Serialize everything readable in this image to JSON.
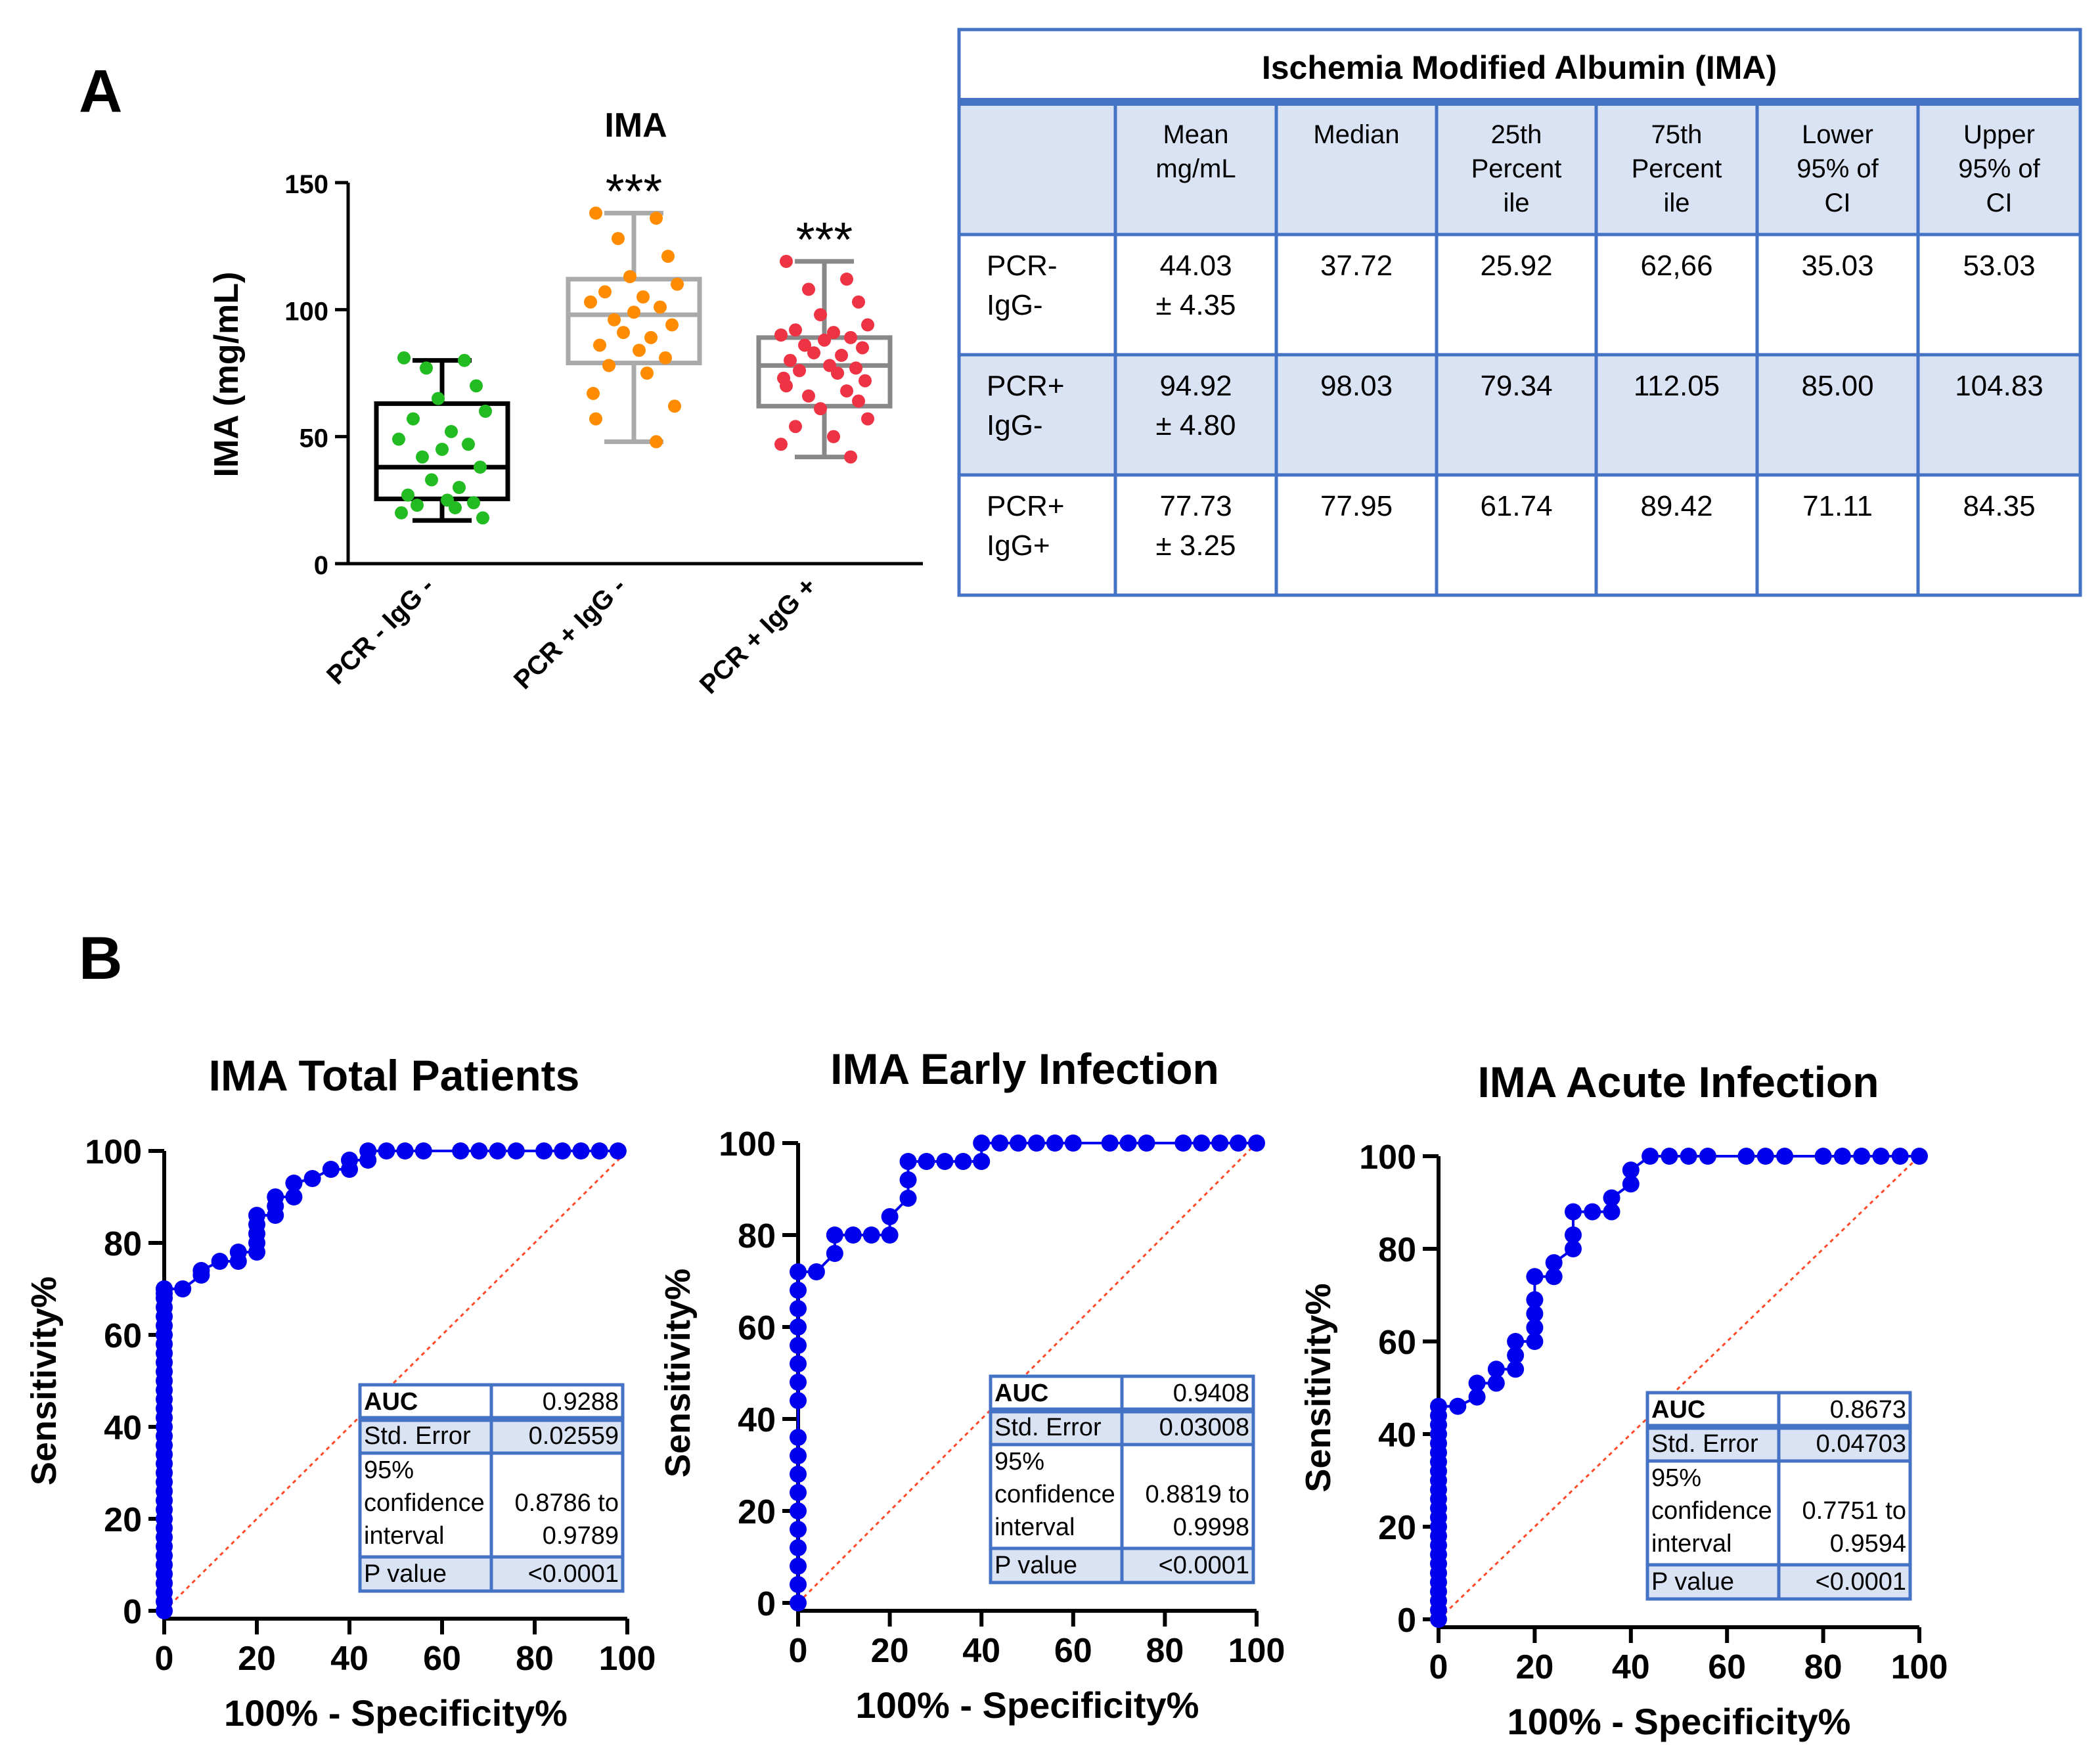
{
  "panel_a_label": "A",
  "panel_b_label": "B",
  "boxplot": {
    "title": "IMA",
    "ylabel": "IMA (mg/mL)",
    "yticks": [
      "0",
      "50",
      "100",
      "150"
    ],
    "significance": "***"
  },
  "ima_table": {
    "title": "Ischemia Modified Albumin (IMA)",
    "headers": [
      [
        "Mean",
        "mg/mL"
      ],
      [
        "Median"
      ],
      [
        "25th",
        "Percent",
        "ile"
      ],
      [
        "75th",
        "Percent",
        "ile"
      ],
      [
        "Lower",
        "95% of",
        "CI"
      ],
      [
        "Upper",
        "95% of",
        "CI"
      ]
    ],
    "rows": [
      {
        "label": [
          "PCR-",
          "IgG-"
        ],
        "mean": [
          "44.03",
          "± 4.35"
        ],
        "median": "37.72",
        "p25": "25.92",
        "p75": "62,66",
        "lower": "35.03",
        "upper": "53.03"
      },
      {
        "label": [
          "PCR+",
          "IgG-"
        ],
        "mean": [
          "94.92",
          "± 4.80"
        ],
        "median": "98.03",
        "p25": "79.34",
        "p75": "112.05",
        "lower": "85.00",
        "upper": "104.83"
      },
      {
        "label": [
          "PCR+",
          "IgG+"
        ],
        "mean": [
          "77.73",
          "± 3.25"
        ],
        "median": "77.95",
        "p25": "61.74",
        "p75": "89.42",
        "lower": "71.11",
        "upper": "84.35"
      }
    ]
  },
  "roc_common": {
    "xlabel": "100% - Specificity%",
    "ylabel": "Sensitivity%",
    "ticks": [
      "0",
      "20",
      "40",
      "60",
      "80",
      "100"
    ],
    "stat_labels": {
      "auc": "AUC",
      "se": "Std. Error",
      "ci": [
        "95%",
        "confidence",
        "interval"
      ],
      "p": "P value"
    }
  },
  "chart_data": [
    {
      "type": "box",
      "title": "IMA",
      "ylabel": "IMA (mg/mL)",
      "ylim": [
        0,
        150
      ],
      "categories": [
        "PCR - IgG -",
        "PCR + IgG -",
        "PCR + IgG +"
      ],
      "colors": [
        "#22bb22",
        "#ff8c00",
        "#ee3344"
      ],
      "significance": [
        "",
        "***",
        "***"
      ],
      "boxes": [
        {
          "min": 17,
          "q1": 25.5,
          "median": 38,
          "q3": 63,
          "max": 80
        },
        {
          "min": 48,
          "q1": 79,
          "median": 98,
          "q3": 112,
          "max": 138
        },
        {
          "min": 42,
          "q1": 62,
          "median": 78,
          "q3": 89,
          "max": 119
        }
      ],
      "points": [
        [
          81,
          80,
          77,
          70,
          65,
          60,
          57,
          52,
          49,
          47,
          45,
          42,
          38,
          33,
          30,
          27,
          25,
          24,
          23,
          22,
          20,
          18
        ],
        [
          138,
          136,
          128,
          121,
          113,
          110,
          107,
          105,
          103,
          101,
          99,
          96,
          94,
          91,
          89,
          86,
          84,
          81,
          78,
          75,
          67,
          62,
          57,
          48
        ],
        [
          119,
          112,
          108,
          103,
          98,
          94,
          92,
          91,
          90,
          89,
          88,
          86,
          85,
          83,
          82,
          80,
          78,
          77,
          76,
          75,
          73,
          72,
          70,
          68,
          66,
          64,
          61,
          57,
          54,
          50,
          47,
          42
        ]
      ]
    },
    {
      "type": "line",
      "title": "IMA Total Patients",
      "xlabel": "100% - Specificity%",
      "ylabel": "Sensitivity%",
      "xlim": [
        0,
        100
      ],
      "ylim": [
        0,
        100
      ],
      "x": [
        0,
        0,
        0,
        0,
        0,
        0,
        0,
        0,
        0,
        0,
        0,
        0,
        0,
        0,
        0,
        0,
        0,
        0,
        0,
        0,
        0,
        0,
        0,
        0,
        0,
        0,
        0,
        0,
        0,
        0,
        0,
        0,
        0,
        0,
        0,
        0,
        0,
        0,
        4,
        8,
        8,
        12,
        16,
        16,
        20,
        20,
        20,
        20,
        20,
        24,
        24,
        24,
        28,
        28,
        32,
        36,
        40,
        40,
        44,
        44,
        48,
        52,
        56,
        64,
        68,
        72,
        76,
        82,
        86,
        90,
        94,
        98
      ],
      "y": [
        0,
        2,
        4,
        6,
        8,
        10,
        12,
        14,
        16,
        18,
        20,
        22,
        24,
        26,
        28,
        30,
        32,
        34,
        36,
        38,
        40,
        42,
        44,
        46,
        48,
        50,
        52,
        54,
        56,
        58,
        60,
        62,
        64,
        66,
        68,
        69,
        70,
        70,
        70,
        73,
        74,
        76,
        76,
        78,
        78,
        80,
        82,
        84,
        86,
        86,
        88,
        90,
        90,
        93,
        94,
        96,
        96,
        98,
        98,
        100,
        100,
        100,
        100,
        100,
        100,
        100,
        100,
        100,
        100,
        100,
        100,
        100
      ],
      "diagonal": true,
      "color": "#0000ee",
      "stats": {
        "auc": "0.9288",
        "se": "0.02559",
        "ci": [
          "0.8786 to",
          "0.9789"
        ],
        "p": "<0.0001"
      }
    },
    {
      "type": "line",
      "title": "IMA Early Infection",
      "xlabel": "100% - Specificity%",
      "ylabel": "Sensitivity%",
      "xlim": [
        0,
        100
      ],
      "ylim": [
        0,
        100
      ],
      "x": [
        0,
        0,
        0,
        0,
        0,
        0,
        0,
        0,
        0,
        0,
        0,
        0,
        0,
        0,
        0,
        0,
        0,
        0,
        4,
        8,
        8,
        12,
        16,
        20,
        20,
        24,
        24,
        24,
        28,
        32,
        36,
        40,
        40,
        44,
        48,
        52,
        56,
        60,
        68,
        72,
        76,
        84,
        88,
        92,
        96,
        100
      ],
      "y": [
        0,
        4,
        8,
        12,
        16,
        20,
        24,
        28,
        32,
        36,
        44,
        48,
        52,
        56,
        60,
        64,
        68,
        72,
        72,
        76,
        80,
        80,
        80,
        80,
        84,
        88,
        92,
        96,
        96,
        96,
        96,
        96,
        100,
        100,
        100,
        100,
        100,
        100,
        100,
        100,
        100,
        100,
        100,
        100,
        100,
        100
      ],
      "diagonal": true,
      "color": "#0000ee",
      "stats": {
        "auc": "0.9408",
        "se": "0.03008",
        "ci": [
          "0.8819 to",
          "0.9998"
        ],
        "p": "<0.0001"
      }
    },
    {
      "type": "line",
      "title": "IMA Acute Infection",
      "xlabel": "100% - Specificity%",
      "ylabel": "Sensitivity%",
      "xlim": [
        0,
        100
      ],
      "ylim": [
        0,
        100
      ],
      "x": [
        0,
        0,
        0,
        0,
        0,
        0,
        0,
        0,
        0,
        0,
        0,
        0,
        0,
        0,
        0,
        0,
        0,
        0,
        0,
        0,
        0,
        0,
        0,
        0,
        4,
        8,
        8,
        12,
        12,
        16,
        16,
        16,
        20,
        20,
        20,
        20,
        20,
        24,
        24,
        28,
        28,
        28,
        32,
        36,
        36,
        40,
        40,
        44,
        48,
        52,
        56,
        64,
        68,
        72,
        80,
        84,
        88,
        92,
        96,
        100
      ],
      "y": [
        0,
        2,
        4,
        6,
        8,
        10,
        12,
        14,
        16,
        18,
        20,
        22,
        24,
        26,
        28,
        30,
        32,
        34,
        36,
        38,
        40,
        42,
        44,
        46,
        46,
        48,
        51,
        51,
        54,
        54,
        57,
        60,
        60,
        63,
        66,
        69,
        74,
        74,
        77,
        80,
        83,
        88,
        88,
        88,
        91,
        94,
        97,
        100,
        100,
        100,
        100,
        100,
        100,
        100,
        100,
        100,
        100,
        100,
        100,
        100
      ],
      "diagonal": true,
      "color": "#0000ee",
      "stats": {
        "auc": "0.8673",
        "se": "0.04703",
        "ci": [
          "0.7751 to",
          "0.9594"
        ],
        "p": "<0.0001"
      }
    }
  ]
}
